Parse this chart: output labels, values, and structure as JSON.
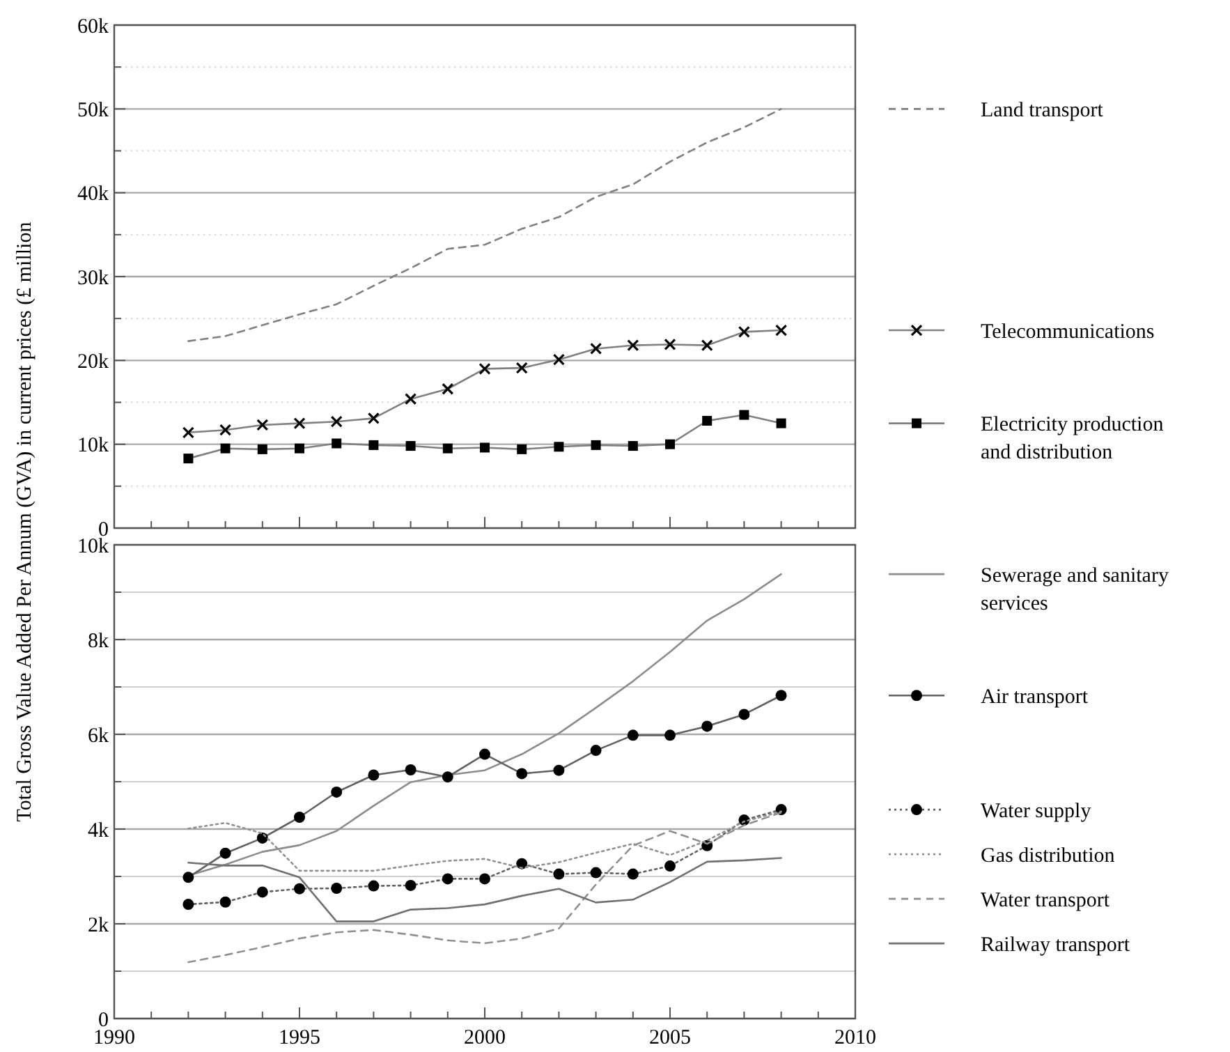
{
  "chart_data": [
    {
      "type": "line",
      "ylabel": "Total Gross Value Added Per Annum (GVA) in current prices (£ million",
      "x": [
        1992,
        1993,
        1994,
        1995,
        1996,
        1997,
        1998,
        1999,
        2000,
        2001,
        2002,
        2003,
        2004,
        2005,
        2006,
        2007,
        2008
      ],
      "xlim": [
        1990,
        2010
      ],
      "xticks": [
        1990,
        {
          "value": 1991,
          "label": null
        },
        {
          "value": 1992,
          "label": null
        },
        {
          "value": 1993,
          "label": null
        },
        {
          "value": 1994,
          "label": null
        },
        1995,
        {
          "value": 1996,
          "label": null
        },
        {
          "value": 1997,
          "label": null
        },
        {
          "value": 1998,
          "label": null
        },
        {
          "value": 1999,
          "label": null
        },
        2000,
        {
          "value": 2001,
          "label": null
        },
        {
          "value": 2002,
          "label": null
        },
        {
          "value": 2003,
          "label": null
        },
        {
          "value": 2004,
          "label": null
        },
        2005,
        {
          "value": 2006,
          "label": null
        },
        {
          "value": 2007,
          "label": null
        },
        {
          "value": 2008,
          "label": null
        },
        {
          "value": 2009,
          "label": null
        },
        2010
      ],
      "ylim": [
        0,
        60000
      ],
      "yticks": [
        {
          "value": 0,
          "label": "0"
        },
        {
          "value": 5000,
          "label": null
        },
        {
          "value": 10000,
          "label": "10k"
        },
        {
          "value": 15000,
          "label": null
        },
        {
          "value": 20000,
          "label": "20k"
        },
        {
          "value": 25000,
          "label": null
        },
        {
          "value": 30000,
          "label": "30k"
        },
        {
          "value": 35000,
          "label": null
        },
        {
          "value": 40000,
          "label": "40k"
        },
        {
          "value": 45000,
          "label": null
        },
        {
          "value": 50000,
          "label": "50k"
        },
        {
          "value": 55000,
          "label": null
        },
        {
          "value": 60000,
          "label": "60k"
        }
      ],
      "grid": "y",
      "legend": "right",
      "tick_labels": "y",
      "series": [
        {
          "name": "Land transport",
          "color": "#808080",
          "line_style": "dashed",
          "marker": "none",
          "values": [
            22300,
            22900,
            24200,
            25500,
            26700,
            28900,
            31000,
            33300,
            33800,
            35700,
            37100,
            39500,
            41000,
            43700,
            46000,
            47800,
            50000
          ]
        },
        {
          "name": "Telecommunications",
          "color": "#808080",
          "line_style": "solid",
          "marker": "cross",
          "values": [
            11400,
            11700,
            12300,
            12500,
            12700,
            13100,
            15400,
            16600,
            19000,
            19100,
            20100,
            21400,
            21800,
            21900,
            21800,
            23400,
            23600
          ]
        },
        {
          "name": "Electricity production and distribution",
          "color": "#808080",
          "line_style": "solid",
          "marker": "square",
          "values": [
            8300,
            9500,
            9400,
            9500,
            10100,
            9900,
            9800,
            9500,
            9600,
            9400,
            9700,
            9900,
            9800,
            10000,
            12800,
            13500,
            12500
          ]
        }
      ]
    },
    {
      "type": "line",
      "x": [
        1992,
        1993,
        1994,
        1995,
        1996,
        1997,
        1998,
        1999,
        2000,
        2001,
        2002,
        2003,
        2004,
        2005,
        2006,
        2007,
        2008
      ],
      "xlim": [
        1990,
        2010
      ],
      "xticks": [
        1990,
        {
          "value": 1991,
          "label": null
        },
        {
          "value": 1992,
          "label": null
        },
        {
          "value": 1993,
          "label": null
        },
        {
          "value": 1994,
          "label": null
        },
        1995,
        {
          "value": 1996,
          "label": null
        },
        {
          "value": 1997,
          "label": null
        },
        {
          "value": 1998,
          "label": null
        },
        {
          "value": 1999,
          "label": null
        },
        2000,
        {
          "value": 2001,
          "label": null
        },
        {
          "value": 2002,
          "label": null
        },
        {
          "value": 2003,
          "label": null
        },
        {
          "value": 2004,
          "label": null
        },
        2005,
        {
          "value": 2006,
          "label": null
        },
        {
          "value": 2007,
          "label": null
        },
        {
          "value": 2008,
          "label": null
        },
        {
          "value": 2009,
          "label": null
        },
        2010
      ],
      "ylim": [
        0,
        10000
      ],
      "yticks": [
        {
          "value": 0,
          "label": "0"
        },
        {
          "value": 1000,
          "label": null
        },
        {
          "value": 2000,
          "label": "2k"
        },
        {
          "value": 3000,
          "label": null
        },
        {
          "value": 4000,
          "label": "4k"
        },
        {
          "value": 5000,
          "label": null
        },
        {
          "value": 6000,
          "label": "6k"
        },
        {
          "value": 7000,
          "label": null
        },
        {
          "value": 8000,
          "label": "8k"
        },
        {
          "value": 9000,
          "label": null
        },
        {
          "value": 10000,
          "label": "10k"
        }
      ],
      "grid": "y",
      "legend": "right",
      "series": [
        {
          "name": "Sewerage and sanitary services",
          "color": "#8c8c8c",
          "line_style": "solid",
          "marker": "none",
          "values": [
            3020,
            3250,
            3520,
            3660,
            3960,
            4490,
            4990,
            5140,
            5240,
            5580,
            6020,
            6560,
            7120,
            7740,
            8400,
            8850,
            9380
          ]
        },
        {
          "name": "Air transport",
          "color": "#606060",
          "line_style": "solid",
          "marker": "circle",
          "values": [
            2980,
            3490,
            3810,
            4250,
            4780,
            5140,
            5250,
            5100,
            5580,
            5170,
            5240,
            5660,
            5980,
            5980,
            6170,
            6420,
            6820
          ]
        },
        {
          "name": "Water supply",
          "color": "#606060",
          "line_style": "dotted",
          "marker": "circle",
          "values": [
            2410,
            2460,
            2670,
            2740,
            2750,
            2800,
            2810,
            2950,
            2950,
            3270,
            3050,
            3080,
            3050,
            3220,
            3650,
            4190,
            4410
          ]
        },
        {
          "name": "Gas distribution",
          "color": "#909090",
          "line_style": "dotted",
          "marker": "none",
          "values": [
            4010,
            4130,
            3910,
            3120,
            3120,
            3120,
            3230,
            3330,
            3370,
            3180,
            3300,
            3500,
            3690,
            3450,
            3760,
            4160,
            4370
          ]
        },
        {
          "name": "Water transport",
          "color": "#909090",
          "line_style": "dashed",
          "marker": "none",
          "values": [
            1190,
            1340,
            1510,
            1690,
            1820,
            1870,
            1770,
            1650,
            1590,
            1690,
            1900,
            2830,
            3650,
            3960,
            3690,
            4080,
            4350
          ]
        },
        {
          "name": "Railway transport",
          "color": "#707070",
          "line_style": "solid",
          "marker": "none",
          "values": [
            3290,
            3230,
            3230,
            2980,
            2050,
            2050,
            2300,
            2330,
            2410,
            2590,
            2740,
            2450,
            2510,
            2880,
            3310,
            3340,
            3390
          ]
        }
      ]
    }
  ]
}
